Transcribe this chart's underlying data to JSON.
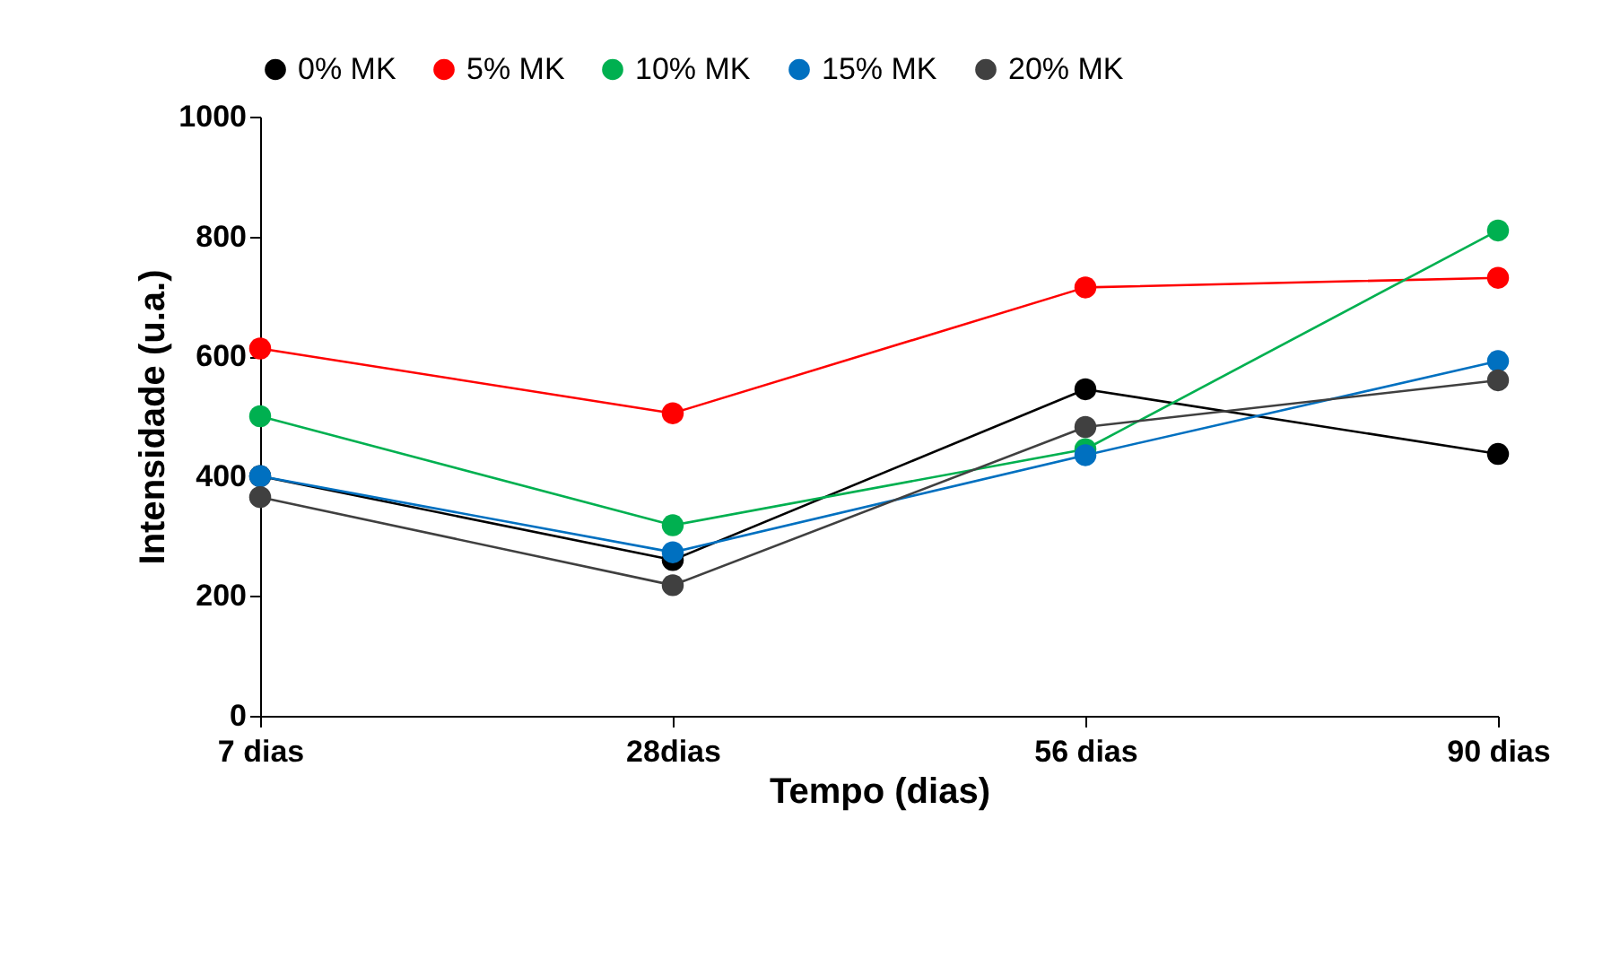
{
  "chart_data": {
    "type": "line",
    "xlabel": "Tempo (dias)",
    "ylabel": "Intensidade (u.a.)",
    "categories": [
      "7 dias",
      "28dias",
      "56 dias",
      "90 dias"
    ],
    "series": [
      {
        "name": "0% MK",
        "color": "#000000",
        "values": [
          400,
          260,
          545,
          437
        ]
      },
      {
        "name": "5% MK",
        "color": "#ff0000",
        "values": [
          613,
          505,
          715,
          731
        ]
      },
      {
        "name": "10% MK",
        "color": "#00b050",
        "values": [
          500,
          318,
          445,
          810
        ]
      },
      {
        "name": "15% MK",
        "color": "#0070c0",
        "values": [
          400,
          273,
          435,
          592
        ]
      },
      {
        "name": "20% MK",
        "color": "#404040",
        "values": [
          365,
          218,
          482,
          560
        ]
      }
    ],
    "ylim": [
      0,
      1000
    ],
    "yticks": [
      0,
      200,
      400,
      600,
      800,
      1000
    ],
    "grid": false,
    "legend": "top",
    "marker": "circle",
    "line_style": "solid"
  }
}
